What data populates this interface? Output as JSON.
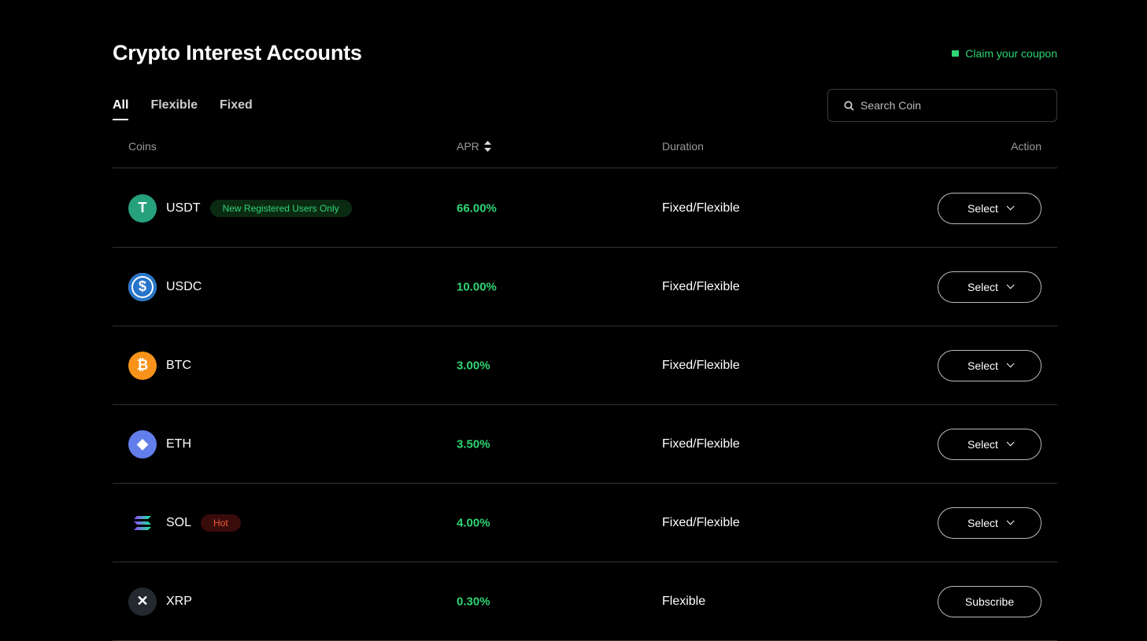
{
  "header": {
    "title": "Crypto Interest Accounts",
    "coupon": "Claim your coupon"
  },
  "tabs": [
    {
      "label": "All",
      "active": true
    },
    {
      "label": "Flexible"
    },
    {
      "label": "Fixed"
    }
  ],
  "search": {
    "placeholder": "Search Coin"
  },
  "table": {
    "columns": [
      "Coins",
      "APR",
      "Duration",
      "Action"
    ],
    "rows": [
      {
        "coin": "USDT",
        "badge": "New Registered Users Only",
        "badge_type": "green",
        "apr": "66.00%",
        "duration": "Fixed/Flexible",
        "action": "Select",
        "color": "#26a17b",
        "icon": "tether-icon"
      },
      {
        "coin": "USDC",
        "badge": "",
        "apr": "10.00%",
        "duration": "Fixed/Flexible",
        "action": "Select",
        "color": "#2775ca",
        "icon": "usdc-icon"
      },
      {
        "coin": "BTC",
        "badge": "",
        "apr": "3.00%",
        "duration": "Fixed/Flexible",
        "action": "Select",
        "color": "#f7931a",
        "icon": "bitcoin-icon"
      },
      {
        "coin": "ETH",
        "badge": "",
        "apr": "3.50%",
        "duration": "Fixed/Flexible",
        "action": "Select",
        "color": "#627eea",
        "icon": "ethereum-icon"
      },
      {
        "coin": "SOL",
        "badge": "Hot",
        "badge_type": "red",
        "apr": "4.00%",
        "duration": "Fixed/Flexible",
        "action": "Select",
        "color": "#000000",
        "icon": "solana-icon"
      },
      {
        "coin": "XRP",
        "badge": "",
        "apr": "0.30%",
        "duration": "Flexible",
        "action": "Subscribe",
        "color": "#23292f",
        "icon": "xrp-icon"
      }
    ]
  }
}
